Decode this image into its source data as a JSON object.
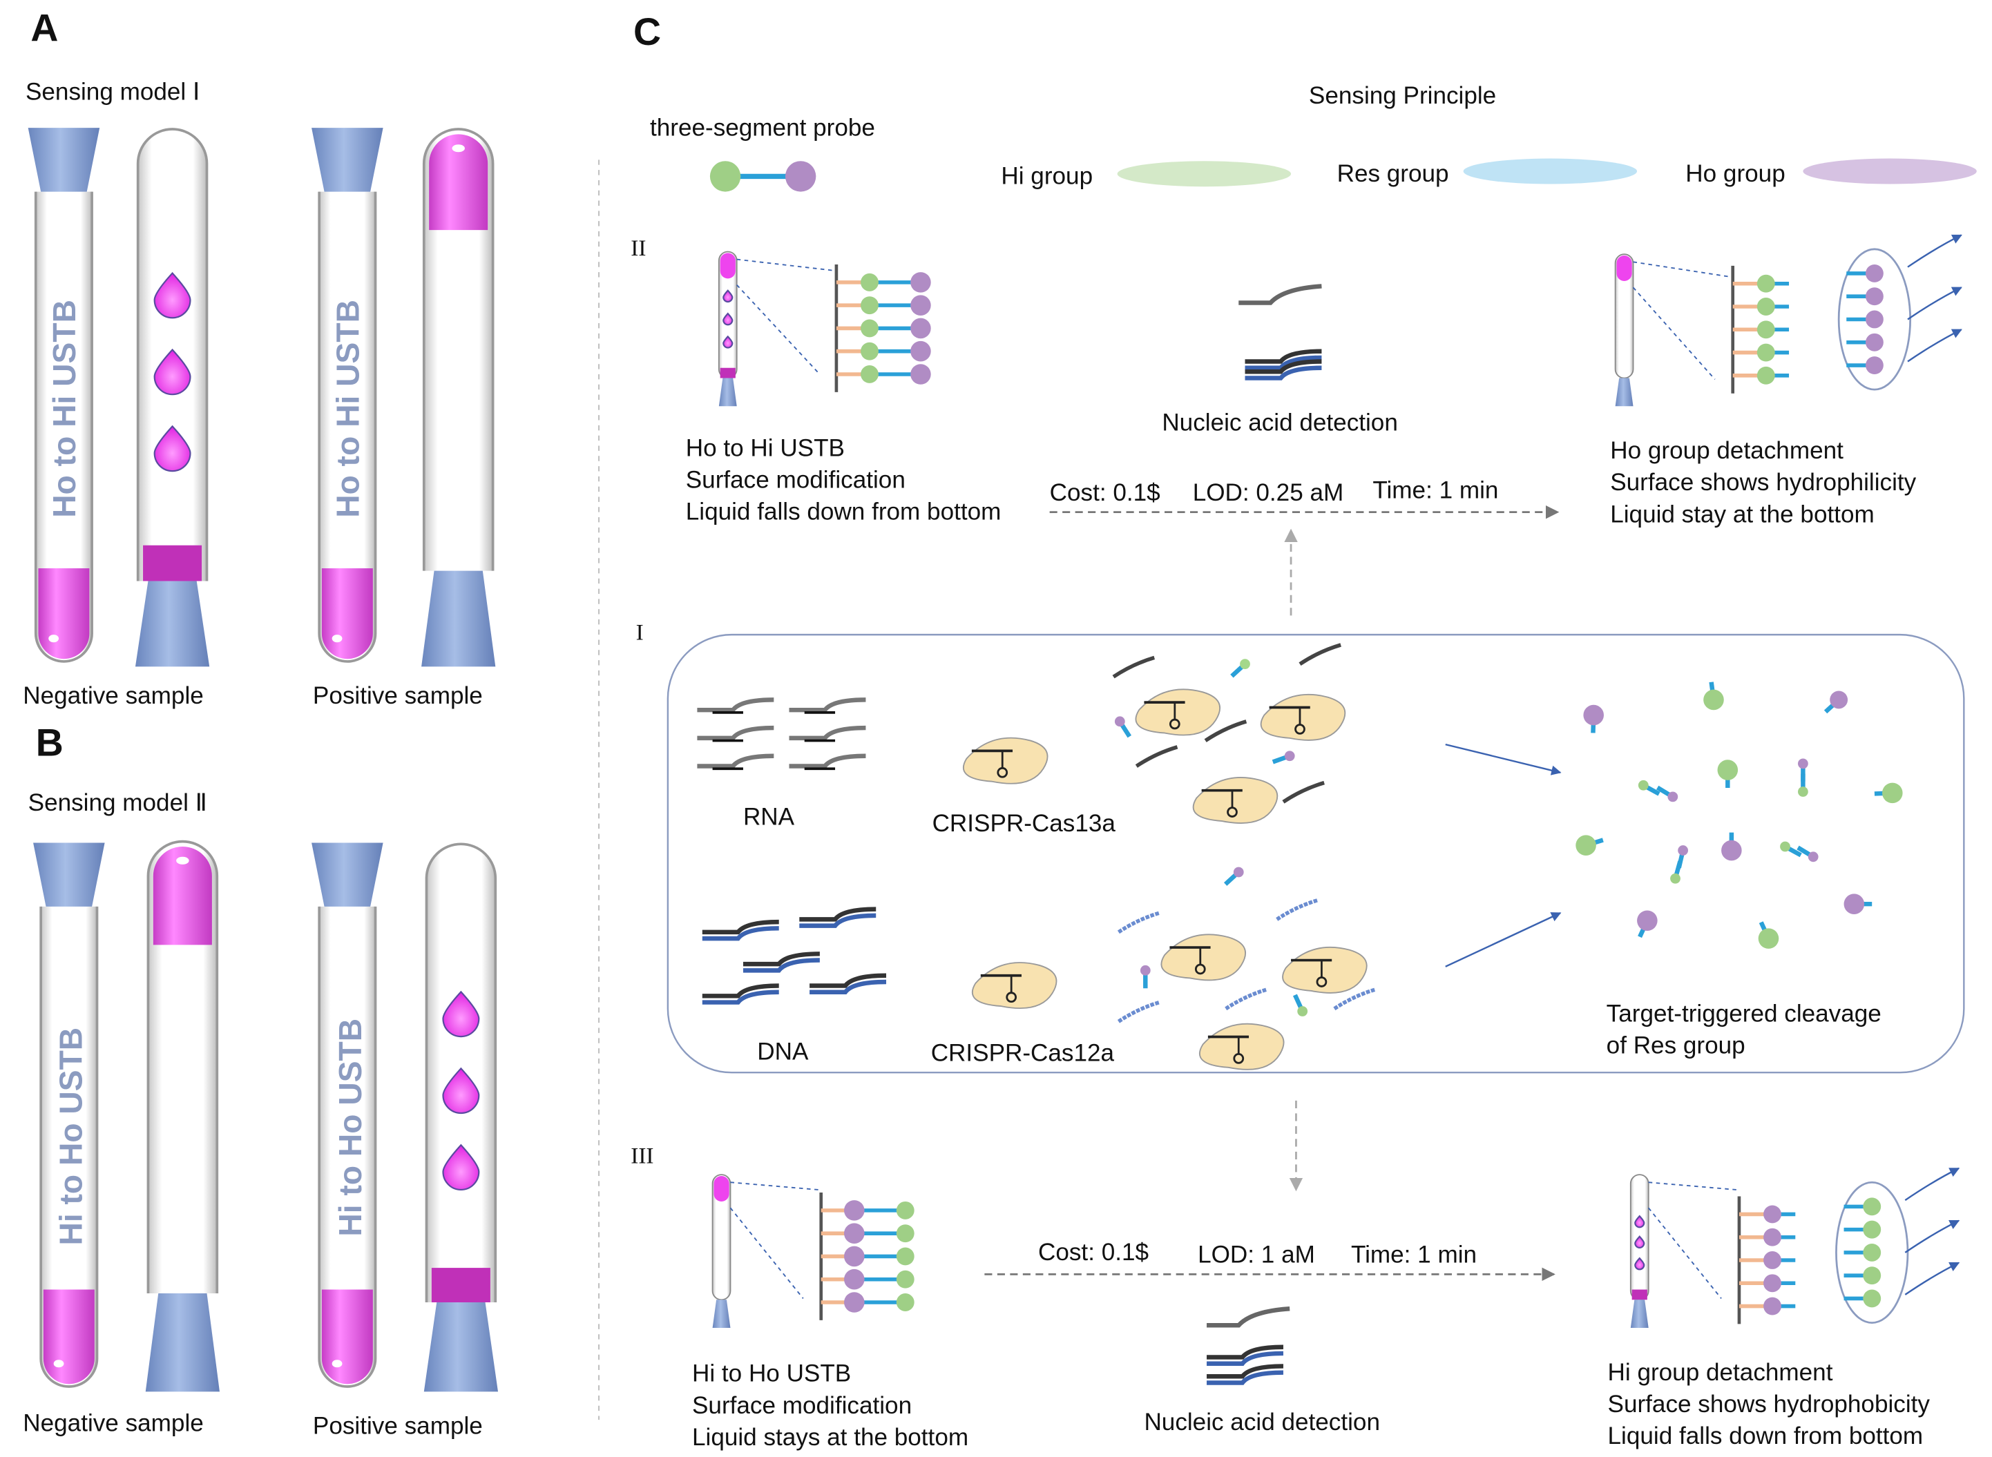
{
  "panels": {
    "A": {
      "letter": "A",
      "title": "Sensing model Ⅰ",
      "tube_label": "Ho to Hi USTB",
      "negative": "Negative sample",
      "positive": "Positive sample"
    },
    "B": {
      "letter": "B",
      "title": "Sensing model Ⅱ",
      "tube_label": "Hi to Ho USTB",
      "negative": "Negative sample",
      "positive": "Positive sample"
    },
    "C": {
      "letter": "C",
      "title": "Sensing Principle",
      "legend": {
        "probe": "three-segment probe",
        "hi": "Hi group",
        "res": "Res group",
        "ho": "Ho group"
      },
      "section_II": {
        "roman": "II",
        "left": [
          "Ho to Hi USTB",
          "Surface modification",
          "Liquid falls down from bottom"
        ],
        "middle": "Nucleic acid detection",
        "metrics": {
          "cost": "Cost: 0.1$",
          "lod": "LOD: 0.25 aM",
          "time": "Time: 1 min"
        },
        "right": [
          "Ho group detachment",
          "Surface shows hydrophilicity",
          "Liquid stay at the bottom"
        ]
      },
      "section_I": {
        "roman": "I",
        "rna": "RNA",
        "dna": "DNA",
        "cas13": "CRISPR-Cas13a",
        "cas12": "CRISPR-Cas12a",
        "cleavage": [
          "Target-triggered cleavage",
          "of Res group"
        ]
      },
      "section_III": {
        "roman": "III",
        "left": [
          "Hi to Ho USTB",
          "Surface modification",
          "Liquid stays at the bottom"
        ],
        "middle": "Nucleic acid detection",
        "metrics": {
          "cost": "Cost: 0.1$",
          "lod": "LOD: 1 aM",
          "time": "Time: 1 min"
        },
        "right": [
          "Hi group detachment",
          "Surface shows hydrophobicity",
          "Liquid falls down from bottom"
        ]
      }
    }
  },
  "colors": {
    "hi": "#9fcf86",
    "res": "#2aa0d8",
    "ho": "#b08cc4",
    "magenta": "#ee44ee",
    "tip": "#7f9bd0",
    "hi_ellipse": "#d4e9c8",
    "res_ellipse": "#bfe3f5",
    "ho_ellipse": "#d6c2e2",
    "protein": "#f8e2b0"
  }
}
